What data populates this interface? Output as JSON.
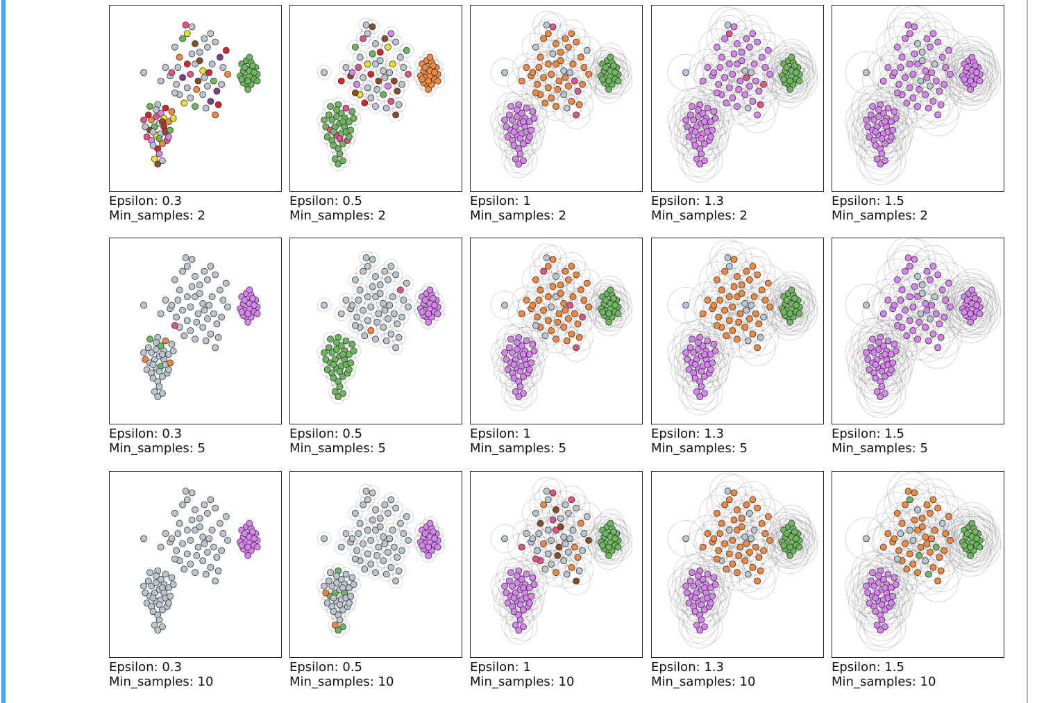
{
  "chart_data": [
    {
      "type": "scatter",
      "title_lines": [
        "Epsilon: 0.3",
        "Min_samples: 2"
      ],
      "epsilon": 0.3,
      "min_samples": 2,
      "groups": {
        "A": [
          "red",
          "orange",
          "pink",
          "purple",
          "yellow",
          "noise",
          "brown",
          "green",
          "noise"
        ],
        "B": [
          "noise",
          "noise",
          "noise",
          "noise",
          "noise",
          "darkpurple",
          "red",
          "orange",
          "noise",
          "green",
          "yellow",
          "noise",
          "pink",
          "brown"
        ],
        "C": [
          "green"
        ]
      }
    },
    {
      "type": "scatter",
      "title_lines": [
        "Epsilon: 0.5",
        "Min_samples: 2"
      ],
      "epsilon": 0.5,
      "min_samples": 2,
      "groups": {
        "A": [
          "green",
          "green",
          "green",
          "green",
          "green",
          "green",
          "pink"
        ],
        "B": [
          "noise",
          "noise",
          "red",
          "brown",
          "purple",
          "noise",
          "yellow",
          "noise",
          "green",
          "pink",
          "noise",
          "brown"
        ],
        "C": [
          "orange"
        ]
      }
    },
    {
      "type": "scatter",
      "title_lines": [
        "Epsilon: 1",
        "Min_samples: 2"
      ],
      "epsilon": 1,
      "min_samples": 2,
      "groups": {
        "A": [
          "purple"
        ],
        "B": [
          "noise",
          "orange",
          "orange",
          "orange",
          "orange",
          "orange",
          "orange",
          "orange",
          "noise",
          "orange",
          "orange",
          "pink"
        ],
        "C": [
          "green"
        ]
      }
    },
    {
      "type": "scatter",
      "title_lines": [
        "Epsilon: 1.3",
        "Min_samples: 2"
      ],
      "epsilon": 1.3,
      "min_samples": 2,
      "groups": {
        "A": [
          "purple"
        ],
        "B": [
          "noise",
          "purple",
          "purple",
          "purple",
          "purple",
          "purple",
          "purple",
          "purple",
          "purple",
          "purple",
          "pink",
          "purple"
        ],
        "C": [
          "green"
        ]
      }
    },
    {
      "type": "scatter",
      "title_lines": [
        "Epsilon: 1.5",
        "Min_samples: 2"
      ],
      "epsilon": 1.5,
      "min_samples": 2,
      "groups": {
        "A": [
          "purple"
        ],
        "B": [
          "noise",
          "purple",
          "purple",
          "purple",
          "purple",
          "purple",
          "purple",
          "purple",
          "purple",
          "purple",
          "purple",
          "purple",
          "purple",
          "noise"
        ],
        "C": [
          "purple"
        ]
      }
    },
    {
      "type": "scatter",
      "title_lines": [
        "Epsilon: 0.3",
        "Min_samples: 5"
      ],
      "epsilon": 0.3,
      "min_samples": 5,
      "groups": {
        "A": [
          "noise",
          "noise",
          "noise",
          "green",
          "noise",
          "orange",
          "noise",
          "noise",
          "noise",
          "noise",
          "noise"
        ],
        "B": [
          "noise",
          "noise",
          "noise",
          "noise",
          "noise",
          "noise",
          "noise",
          "noise",
          "noise",
          "noise",
          "noise",
          "noise",
          "noise",
          "noise",
          "noise",
          "noise",
          "noise",
          "noise",
          "noise",
          "noise",
          "noise",
          "noise",
          "noise",
          "noise",
          "noise",
          "noise",
          "noise",
          "noise",
          "noise",
          "noise",
          "noise",
          "noise",
          "noise",
          "noise",
          "noise",
          "noise",
          "noise",
          "noise",
          "noise",
          "pink"
        ],
        "C": [
          "purple"
        ]
      }
    },
    {
      "type": "scatter",
      "title_lines": [
        "Epsilon: 0.5",
        "Min_samples: 5"
      ],
      "epsilon": 0.5,
      "min_samples": 5,
      "groups": {
        "A": [
          "green"
        ],
        "B": [
          "noise",
          "noise",
          "noise",
          "noise",
          "noise",
          "noise",
          "noise",
          "noise",
          "noise",
          "noise",
          "noise",
          "noise",
          "noise",
          "noise",
          "noise",
          "noise",
          "noise",
          "noise",
          "noise",
          "pink",
          "noise",
          "noise",
          "noise",
          "noise",
          "noise",
          "noise",
          "noise",
          "noise",
          "noise",
          "noise",
          "noise",
          "orange"
        ],
        "C": [
          "purple"
        ]
      }
    },
    {
      "type": "scatter",
      "title_lines": [
        "Epsilon: 1",
        "Min_samples: 5"
      ],
      "epsilon": 1,
      "min_samples": 5,
      "groups": {
        "A": [
          "purple"
        ],
        "B": [
          "noise",
          "orange",
          "orange",
          "orange",
          "orange",
          "orange",
          "orange",
          "orange",
          "orange",
          "pink",
          "orange",
          "orange",
          "noise"
        ],
        "C": [
          "green"
        ]
      }
    },
    {
      "type": "scatter",
      "title_lines": [
        "Epsilon: 1.3",
        "Min_samples: 5"
      ],
      "epsilon": 1.3,
      "min_samples": 5,
      "groups": {
        "A": [
          "purple"
        ],
        "B": [
          "noise",
          "orange",
          "orange",
          "orange",
          "orange",
          "orange",
          "orange",
          "orange",
          "orange",
          "orange",
          "noise",
          "orange"
        ],
        "C": [
          "green"
        ]
      }
    },
    {
      "type": "scatter",
      "title_lines": [
        "Epsilon: 1.5",
        "Min_samples: 5"
      ],
      "epsilon": 1.5,
      "min_samples": 5,
      "groups": {
        "A": [
          "purple"
        ],
        "B": [
          "noise",
          "purple",
          "purple",
          "purple",
          "purple",
          "purple",
          "purple",
          "purple",
          "purple",
          "purple",
          "purple",
          "purple",
          "purple",
          "noise"
        ],
        "C": [
          "purple"
        ]
      }
    },
    {
      "type": "scatter",
      "title_lines": [
        "Epsilon: 0.3",
        "Min_samples: 10"
      ],
      "epsilon": 0.3,
      "min_samples": 10,
      "groups": {
        "A": [
          "noise"
        ],
        "B": [
          "noise"
        ],
        "C": [
          "purple"
        ]
      }
    },
    {
      "type": "scatter",
      "title_lines": [
        "Epsilon: 0.5",
        "Min_samples: 10"
      ],
      "epsilon": 0.5,
      "min_samples": 10,
      "groups": {
        "A": [
          "noise",
          "noise",
          "noise",
          "noise",
          "noise",
          "orange",
          "green",
          "green",
          "noise",
          "green",
          "noise",
          "noise",
          "noise",
          "noise",
          "noise",
          "noise",
          "noise"
        ],
        "B": [
          "noise"
        ],
        "C": [
          "purple"
        ]
      }
    },
    {
      "type": "scatter",
      "title_lines": [
        "Epsilon: 1",
        "Min_samples: 10"
      ],
      "epsilon": 1,
      "min_samples": 10,
      "groups": {
        "A": [
          "purple"
        ],
        "B": [
          "noise",
          "noise",
          "pink",
          "noise",
          "noise",
          "orange",
          "noise",
          "brown",
          "noise",
          "orange",
          "noise",
          "pink",
          "noise",
          "brown"
        ],
        "C": [
          "green"
        ]
      }
    },
    {
      "type": "scatter",
      "title_lines": [
        "Epsilon: 1.3",
        "Min_samples: 10"
      ],
      "epsilon": 1.3,
      "min_samples": 10,
      "groups": {
        "A": [
          "purple"
        ],
        "B": [
          "noise",
          "orange",
          "orange",
          "orange",
          "orange",
          "orange",
          "noise",
          "orange",
          "orange",
          "orange",
          "orange",
          "orange"
        ],
        "C": [
          "green"
        ]
      }
    },
    {
      "type": "scatter",
      "title_lines": [
        "Epsilon: 1.5",
        "Min_samples: 10"
      ],
      "epsilon": 1.5,
      "min_samples": 10,
      "groups": {
        "A": [
          "purple"
        ],
        "B": [
          "noise",
          "orange",
          "orange",
          "orange",
          "orange",
          "orange",
          "noise",
          "orange",
          "orange",
          "orange",
          "green",
          "orange",
          "orange"
        ],
        "C": [
          "green"
        ]
      }
    }
  ],
  "points": {
    "A": [
      [
        20,
        40
      ],
      [
        22,
        37
      ],
      [
        25,
        39
      ],
      [
        28,
        41
      ],
      [
        30,
        38
      ],
      [
        18,
        33
      ],
      [
        21,
        31
      ],
      [
        24,
        33
      ],
      [
        27,
        35
      ],
      [
        30,
        33
      ],
      [
        33,
        36
      ],
      [
        19,
        27
      ],
      [
        22,
        25
      ],
      [
        25,
        28
      ],
      [
        28,
        29
      ],
      [
        31,
        30
      ],
      [
        34,
        31
      ],
      [
        23,
        22
      ],
      [
        26,
        20
      ],
      [
        29,
        23
      ],
      [
        32,
        25
      ],
      [
        27,
        17
      ],
      [
        24,
        14
      ],
      [
        29,
        13
      ],
      [
        26,
        11
      ],
      [
        21,
        45
      ],
      [
        26,
        46
      ],
      [
        31,
        44
      ],
      [
        35,
        42
      ],
      [
        17,
        37
      ],
      [
        33,
        27
      ],
      [
        36,
        38
      ],
      [
        23,
        30
      ],
      [
        29,
        36
      ],
      [
        27,
        26
      ],
      [
        25,
        43
      ]
    ],
    "B": [
      [
        17,
        65
      ],
      [
        31,
        68
      ],
      [
        28,
        60
      ],
      [
        34,
        63
      ],
      [
        38,
        58
      ],
      [
        42,
        62
      ],
      [
        45,
        70
      ],
      [
        40,
        74
      ],
      [
        37,
        80
      ],
      [
        42,
        85
      ],
      [
        45,
        88
      ],
      [
        48,
        92
      ],
      [
        44,
        93
      ],
      [
        50,
        82
      ],
      [
        53,
        77
      ],
      [
        56,
        85
      ],
      [
        60,
        88
      ],
      [
        63,
        83
      ],
      [
        58,
        80
      ],
      [
        66,
        74
      ],
      [
        70,
        78
      ],
      [
        71,
        64
      ],
      [
        67,
        58
      ],
      [
        62,
        60
      ],
      [
        55,
        66
      ],
      [
        50,
        70
      ],
      [
        47,
        64
      ],
      [
        52,
        60
      ],
      [
        58,
        57
      ],
      [
        45,
        56
      ],
      [
        40,
        52
      ],
      [
        47,
        50
      ],
      [
        55,
        52
      ],
      [
        60,
        48
      ],
      [
        65,
        46
      ],
      [
        63,
        40
      ],
      [
        57,
        44
      ],
      [
        50,
        45
      ],
      [
        43,
        47
      ],
      [
        37,
        53
      ],
      [
        35,
        65
      ],
      [
        53,
        72
      ],
      [
        61,
        70
      ],
      [
        68,
        68
      ],
      [
        48,
        76
      ],
      [
        39,
        68
      ],
      [
        56,
        62
      ],
      [
        64,
        54
      ],
      [
        59,
        65
      ],
      [
        51,
        55
      ]
    ],
    "C": [
      [
        80,
        70
      ],
      [
        83,
        72
      ],
      [
        86,
        71
      ],
      [
        89,
        68
      ],
      [
        81,
        66
      ],
      [
        84,
        67
      ],
      [
        87,
        66
      ],
      [
        90,
        64
      ],
      [
        79,
        63
      ],
      [
        82,
        62
      ],
      [
        85,
        63
      ],
      [
        88,
        61
      ],
      [
        83,
        58
      ],
      [
        86,
        58
      ],
      [
        81,
        59
      ],
      [
        84,
        60
      ],
      [
        87,
        69
      ],
      [
        82,
        68
      ],
      [
        85,
        66
      ],
      [
        88,
        65
      ],
      [
        80,
        61
      ],
      [
        84,
        55
      ],
      [
        90,
        60
      ],
      [
        85,
        74
      ]
    ]
  },
  "palette": {
    "noise": "#b9c6d0",
    "orange": "#f5883a",
    "purple": "#d982f2",
    "green": "#6cb85c",
    "pink": "#e85088",
    "red": "#d8232b",
    "brown": "#8e4a24",
    "yellow": "#e5e526",
    "darkpurple": "#7b3f8c"
  }
}
